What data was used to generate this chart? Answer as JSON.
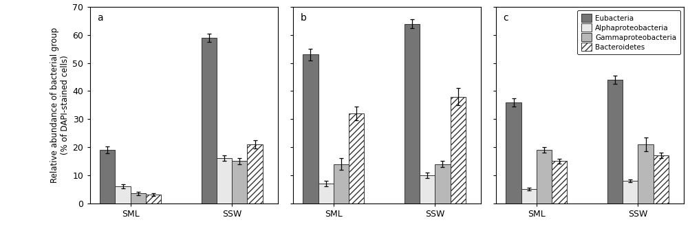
{
  "panels": [
    {
      "label": "a",
      "SML": {
        "Eubacteria": {
          "val": 19.0,
          "err": 1.2
        },
        "Alphaproteobacteria": {
          "val": 6.0,
          "err": 0.8
        },
        "Gammaproteobacteria": {
          "val": 3.5,
          "err": 0.6
        },
        "Bacteroidetes": {
          "val": 3.0,
          "err": 0.5
        }
      },
      "SSW": {
        "Eubacteria": {
          "val": 59.0,
          "err": 1.5
        },
        "Alphaproteobacteria": {
          "val": 16.0,
          "err": 1.0
        },
        "Gammaproteobacteria": {
          "val": 15.0,
          "err": 1.0
        },
        "Bacteroidetes": {
          "val": 21.0,
          "err": 1.5
        }
      }
    },
    {
      "label": "b",
      "SML": {
        "Eubacteria": {
          "val": 53.0,
          "err": 2.0
        },
        "Alphaproteobacteria": {
          "val": 7.0,
          "err": 1.0
        },
        "Gammaproteobacteria": {
          "val": 14.0,
          "err": 2.0
        },
        "Bacteroidetes": {
          "val": 32.0,
          "err": 2.5
        }
      },
      "SSW": {
        "Eubacteria": {
          "val": 64.0,
          "err": 1.5
        },
        "Alphaproteobacteria": {
          "val": 10.0,
          "err": 1.0
        },
        "Gammaproteobacteria": {
          "val": 14.0,
          "err": 1.0
        },
        "Bacteroidetes": {
          "val": 38.0,
          "err": 3.0
        }
      }
    },
    {
      "label": "c",
      "SML": {
        "Eubacteria": {
          "val": 36.0,
          "err": 1.5
        },
        "Alphaproteobacteria": {
          "val": 5.0,
          "err": 0.5
        },
        "Gammaproteobacteria": {
          "val": 19.0,
          "err": 1.0
        },
        "Bacteroidetes": {
          "val": 15.0,
          "err": 0.8
        }
      },
      "SSW": {
        "Eubacteria": {
          "val": 44.0,
          "err": 1.5
        },
        "Alphaproteobacteria": {
          "val": 8.0,
          "err": 0.5
        },
        "Gammaproteobacteria": {
          "val": 21.0,
          "err": 2.5
        },
        "Bacteroidetes": {
          "val": 17.0,
          "err": 1.0
        }
      }
    }
  ],
  "groups": [
    "Eubacteria",
    "Alphaproteobacteria",
    "Gammaproteobacteria",
    "Bacteroidetes"
  ],
  "colors": [
    "#757575",
    "#e8e8e8",
    "#b8b8b8",
    "#ffffff"
  ],
  "hatches": [
    "",
    "",
    "",
    "////"
  ],
  "edgecolor": "#333333",
  "ylim": [
    0,
    70
  ],
  "yticks": [
    0,
    10,
    20,
    30,
    40,
    50,
    60,
    70
  ],
  "ylabel": "Relative abundance of bacterial group\n(% of DAPI-stained cells)",
  "xlabel_groups": [
    "SML",
    "SSW"
  ],
  "background_color": "#ffffff",
  "bar_width": 0.15,
  "legend_labels": [
    "Eubacteria",
    "Alphaproteobacteria",
    "Gammaproteobacteria",
    "Bacteroidetes"
  ]
}
